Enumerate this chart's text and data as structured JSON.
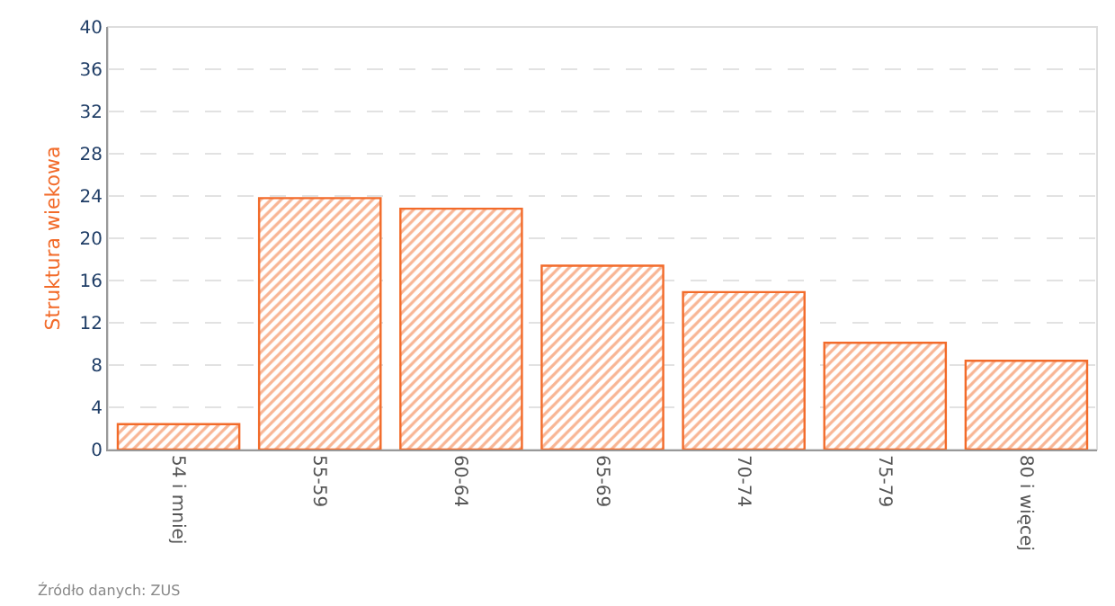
{
  "chart_data": {
    "type": "bar",
    "ylabel": "Struktura wiekowa",
    "categories": [
      "54 i mniej",
      "55-59",
      "60-64",
      "65-69",
      "70-74",
      "75-79",
      "80 i więcej"
    ],
    "values": [
      2.4,
      23.8,
      22.8,
      17.4,
      14.9,
      10.1,
      8.4
    ],
    "color": "#f26b2a",
    "ylim": [
      0,
      40
    ],
    "yticks": [
      0,
      4,
      8,
      12,
      16,
      20,
      24,
      28,
      32,
      36,
      40
    ],
    "grid": "y",
    "annotations": [
      "Źródło danych: ZUS"
    ]
  }
}
